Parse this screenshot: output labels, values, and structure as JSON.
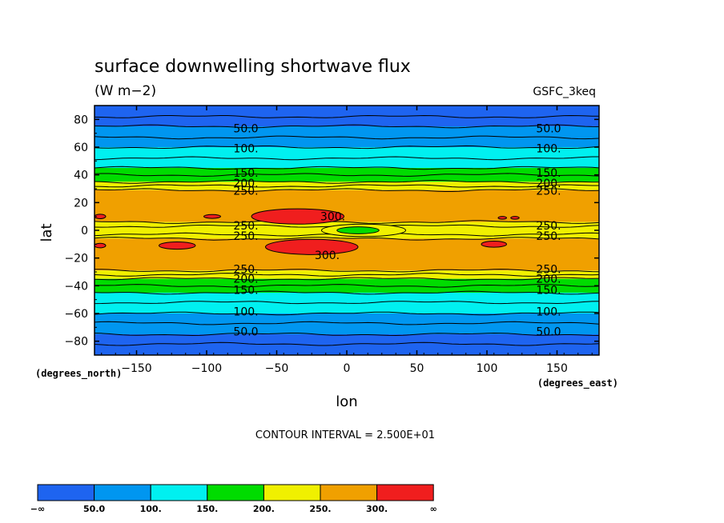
{
  "chart_data": {
    "type": "heatmap",
    "title": "surface downwelling shortwave flux",
    "units": "(W m−2)",
    "model": "GSFC_3keq",
    "xlabel": "lon",
    "ylabel": "lat",
    "x_units": "(degrees_east)",
    "y_units": "(degrees_north)",
    "xlim": [
      -180,
      180
    ],
    "ylim": [
      -90,
      90
    ],
    "x_ticks": [
      -150,
      -100,
      -50,
      0,
      50,
      100,
      150
    ],
    "y_ticks": [
      80,
      60,
      40,
      20,
      0,
      -20,
      -40,
      -60,
      -80
    ],
    "x_tick_labels": [
      "−150",
      "−100",
      "−50",
      "0",
      "50",
      "100",
      "150"
    ],
    "y_tick_labels": [
      "80",
      "60",
      "40",
      "20",
      "0",
      "−20",
      "−40",
      "−60",
      "−80"
    ],
    "contour_interval_text": "CONTOUR INTERVAL = 2.500E+01",
    "colorbar": {
      "colors": [
        "#1e64f0",
        "#0096f0",
        "#00f0f0",
        "#00dc00",
        "#f0f000",
        "#f0a000",
        "#f01e1e"
      ],
      "labels": [
        "−∞",
        "50.0",
        "100.",
        "150.",
        "200.",
        "250.",
        "300.",
        "∞"
      ]
    },
    "zonal_bands": [
      {
        "lat_min": 75,
        "lat_max": 90,
        "band": "<50",
        "color": "#1e64f0"
      },
      {
        "lat_min": 60,
        "lat_max": 75,
        "band": "50-100",
        "color": "#0096f0"
      },
      {
        "lat_min": 45,
        "lat_max": 60,
        "band": "100-150",
        "color": "#00f0f0"
      },
      {
        "lat_min": 35,
        "lat_max": 45,
        "band": "150-200",
        "color": "#00dc00"
      },
      {
        "lat_min": 29,
        "lat_max": 35,
        "band": "200-250",
        "color": "#f0f000"
      },
      {
        "lat_min": 6,
        "lat_max": 29,
        "band": "250-300",
        "color": "#f0a000"
      },
      {
        "lat_min": -6,
        "lat_max": 6,
        "band": "200-250",
        "color": "#f0f000"
      },
      {
        "lat_min": -29,
        "lat_max": -6,
        "band": "250-300",
        "color": "#f0a000"
      },
      {
        "lat_min": -35,
        "lat_max": -29,
        "band": "200-250",
        "color": "#f0f000"
      },
      {
        "lat_min": -45,
        "lat_max": -35,
        "band": "150-200",
        "color": "#00dc00"
      },
      {
        "lat_min": -60,
        "lat_max": -45,
        "band": "100-150",
        "color": "#00f0f0"
      },
      {
        "lat_min": -75,
        "lat_max": -60,
        "band": "50-100",
        "color": "#0096f0"
      },
      {
        "lat_min": -90,
        "lat_max": -75,
        "band": "<50",
        "color": "#1e64f0"
      }
    ],
    "regions": [
      {
        "name": "max-north",
        "lon": -35,
        "lat": 10,
        "rlon": 33,
        "rlat": 5.5,
        "color": "#f01e1e"
      },
      {
        "name": "max-south",
        "lon": -25,
        "lat": -12,
        "rlon": 33,
        "rlat": 5.5,
        "color": "#f01e1e"
      },
      {
        "name": "min-equator",
        "lon": 8,
        "lat": 0,
        "rlon": 15,
        "rlat": 2.5,
        "color": "#00dc00"
      },
      {
        "name": "min-equator-yellow",
        "lon": 12,
        "lat": 0,
        "rlon": 30,
        "rlat": 4.5,
        "color": "#f0f000"
      },
      {
        "name": "small-max-1",
        "lon": -96,
        "lat": 10,
        "rlon": 6,
        "rlat": 1.4,
        "color": "#f01e1e"
      },
      {
        "name": "small-max-2",
        "lon": -121,
        "lat": -11,
        "rlon": 13,
        "rlat": 2.6,
        "color": "#f01e1e"
      },
      {
        "name": "small-max-3",
        "lon": 105,
        "lat": -10,
        "rlon": 9,
        "rlat": 2.2,
        "color": "#f01e1e"
      },
      {
        "name": "small-max-4",
        "lon": -176,
        "lat": 10,
        "rlon": 4,
        "rlat": 1.6,
        "color": "#f01e1e"
      },
      {
        "name": "small-max-5",
        "lon": -176,
        "lat": -11,
        "rlon": 4,
        "rlat": 1.6,
        "color": "#f01e1e"
      },
      {
        "name": "small-max-6",
        "lon": 111,
        "lat": 9,
        "rlon": 3,
        "rlat": 1.0,
        "color": "#f01e1e"
      },
      {
        "name": "small-max-7",
        "lon": 120,
        "lat": 9,
        "rlon": 3,
        "rlat": 1.0,
        "color": "#f01e1e"
      }
    ],
    "contour_labels": [
      {
        "lon": -72,
        "lat": 73.5,
        "text": "50.0"
      },
      {
        "lon": 144,
        "lat": 73.5,
        "text": "50.0"
      },
      {
        "lon": -72,
        "lat": 59,
        "text": "100."
      },
      {
        "lon": 144,
        "lat": 59,
        "text": "100."
      },
      {
        "lon": -72,
        "lat": 41.5,
        "text": "150."
      },
      {
        "lon": 144,
        "lat": 41.5,
        "text": "150."
      },
      {
        "lon": -72,
        "lat": 34,
        "text": "200."
      },
      {
        "lon": 144,
        "lat": 34,
        "text": "200."
      },
      {
        "lon": -72,
        "lat": 28.5,
        "text": "250."
      },
      {
        "lon": 144,
        "lat": 28.5,
        "text": "250."
      },
      {
        "lon": -72,
        "lat": 3.5,
        "text": "250."
      },
      {
        "lon": 144,
        "lat": 3.5,
        "text": "250."
      },
      {
        "lon": -72,
        "lat": -4,
        "text": "250."
      },
      {
        "lon": 144,
        "lat": -4,
        "text": "250."
      },
      {
        "lon": -72,
        "lat": -28,
        "text": "250."
      },
      {
        "lon": 144,
        "lat": -28,
        "text": "250."
      },
      {
        "lon": -72,
        "lat": -35,
        "text": "200."
      },
      {
        "lon": 144,
        "lat": -35,
        "text": "200."
      },
      {
        "lon": -72,
        "lat": -43,
        "text": "150."
      },
      {
        "lon": 144,
        "lat": -43,
        "text": "150."
      },
      {
        "lon": -72,
        "lat": -58.5,
        "text": "100."
      },
      {
        "lon": 144,
        "lat": -58.5,
        "text": "100."
      },
      {
        "lon": -72,
        "lat": -73,
        "text": "50.0"
      },
      {
        "lon": 144,
        "lat": -73,
        "text": "50.0"
      },
      {
        "lon": -10,
        "lat": 10,
        "text": "300."
      },
      {
        "lon": -14,
        "lat": -18,
        "text": "300."
      }
    ],
    "contour_lines_lat": [
      82,
      75,
      67,
      60,
      52,
      45,
      40,
      35,
      32,
      29,
      6,
      3,
      -3,
      -6,
      -29,
      -32,
      -35,
      -40,
      -45,
      -52,
      -60,
      -67,
      -75,
      -82
    ]
  }
}
